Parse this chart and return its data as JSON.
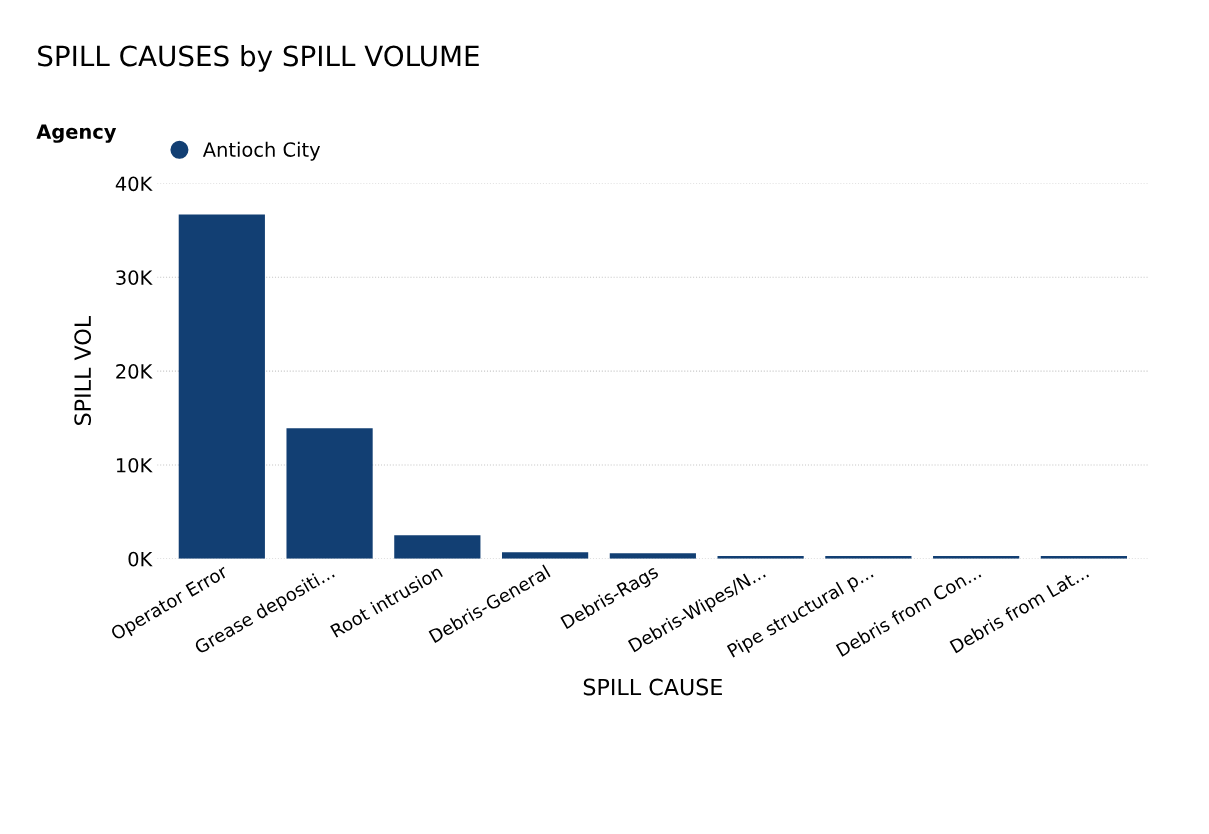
{
  "chart_data": {
    "type": "bar",
    "title": "SPILL CAUSES by SPILL VOLUME",
    "legend_title": "Agency",
    "xlabel": "SPILL CAUSE",
    "ylabel": "SPILL VOL",
    "categories": [
      "Operator Error",
      "Grease depositi...",
      "Root intrusion",
      "Debris-General",
      "Debris-Rags",
      "Debris-Wipes/N...",
      "Pipe structural p...",
      "Debris from Con...",
      "Debris from Lat..."
    ],
    "series": [
      {
        "name": "Antioch City",
        "color": "#123f73",
        "values": [
          36700,
          13900,
          2500,
          700,
          600,
          300,
          300,
          300,
          300
        ]
      }
    ],
    "ylim": [
      0,
      40000
    ],
    "yticks": [
      {
        "value": 0,
        "label": "0K"
      },
      {
        "value": 10000,
        "label": "10K"
      },
      {
        "value": 20000,
        "label": "20K"
      },
      {
        "value": 30000,
        "label": "30K"
      },
      {
        "value": 40000,
        "label": "40K"
      }
    ],
    "grid": "y",
    "legend": "top left"
  }
}
